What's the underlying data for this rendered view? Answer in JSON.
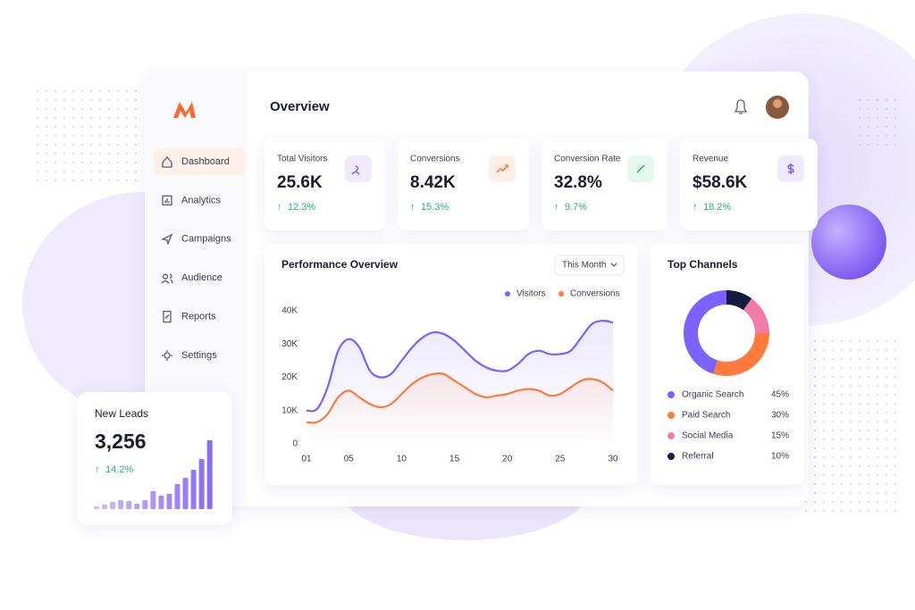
{
  "sidebar": {
    "nav": [
      "Dashboard",
      "Analytics",
      "Campaigns",
      "Audience",
      "Reports",
      "Settings"
    ]
  },
  "header": {
    "title": "Overview"
  },
  "kpis": [
    {
      "label": "Total Visitors",
      "value": "25.6K",
      "change": "12.3%"
    },
    {
      "label": "Conversions",
      "value": "8.42K",
      "change": "15.3%"
    },
    {
      "label": "Conversion Rate",
      "value": "32.8%",
      "change": "9.7%"
    },
    {
      "label": "Revenue",
      "value": "$58.6K",
      "change": "18.2%"
    }
  ],
  "leads": {
    "title": "New Leads",
    "value": "3,256",
    "change": "14.2%"
  },
  "chart_data": [
    {
      "type": "line",
      "title": "Performance Overview",
      "filter": "This Month",
      "x": [
        1,
        2,
        3,
        4,
        5,
        6,
        7,
        8,
        9,
        10,
        11,
        12,
        13,
        14,
        15,
        16,
        17,
        18,
        19,
        20,
        21,
        22,
        23,
        24,
        25,
        26,
        27,
        28,
        29,
        30
      ],
      "xlim": [
        1,
        30
      ],
      "xticks": [
        {
          "value": 1,
          "label": "01"
        },
        {
          "value": 5,
          "label": "05"
        },
        10,
        15,
        20,
        25,
        30
      ],
      "ylim": [
        0,
        40000
      ],
      "yticks": [
        0,
        {
          "value": 10000,
          "label": "10K"
        },
        {
          "value": 20000,
          "label": "20K"
        },
        {
          "value": 30000,
          "label": "30K"
        },
        {
          "value": 40000,
          "label": "40K"
        }
      ],
      "series": [
        {
          "name": "Visitors",
          "color": "#7b61ff",
          "values": [
            10000,
            10500,
            17000,
            28000,
            31500,
            29000,
            22000,
            20000,
            21000,
            25000,
            29000,
            32000,
            33500,
            33000,
            31000,
            28000,
            25000,
            23000,
            22000,
            22000,
            24000,
            27000,
            28000,
            27000,
            27000,
            28000,
            32000,
            36000,
            37000,
            36500
          ]
        },
        {
          "name": "Conversions",
          "color": "#ff7a3d",
          "values": [
            6500,
            6500,
            9000,
            14000,
            16000,
            14000,
            12000,
            11000,
            12000,
            15000,
            18000,
            20000,
            21000,
            21000,
            19000,
            17000,
            15000,
            14000,
            14500,
            15000,
            16000,
            16500,
            16000,
            14500,
            15000,
            17000,
            19000,
            19500,
            18500,
            16000
          ]
        }
      ]
    },
    {
      "type": "pie",
      "title": "Top Channels",
      "categories": [
        "Organic Search",
        "Paid Search",
        "Social Media",
        "Referral"
      ],
      "values": [
        45,
        30,
        15,
        10
      ],
      "value_labels": [
        "45%",
        "30%",
        "15%",
        "10%"
      ],
      "colors": [
        "#7b61ff",
        "#ff7a3d",
        "#f27ba8",
        "#141b3c"
      ]
    },
    {
      "type": "bar",
      "color": "#8b6cf6",
      "values": [
        3,
        5,
        8,
        10,
        9,
        6,
        10,
        20,
        15,
        17,
        28,
        35,
        44,
        56,
        77
      ]
    }
  ]
}
